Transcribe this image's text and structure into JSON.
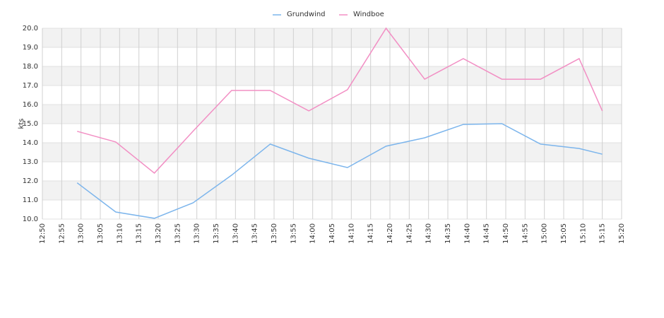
{
  "chart_data": {
    "type": "line",
    "y_label": "kts",
    "x": [
      "12:59",
      "13:09",
      "13:19",
      "13:29",
      "13:39",
      "13:49",
      "13:59",
      "14:09",
      "14:19",
      "14:29",
      "14:39",
      "14:49",
      "14:59",
      "15:09",
      "15:15"
    ],
    "series": [
      {
        "name": "Grundwind",
        "color": "#7cb5ec",
        "values": [
          11.9,
          10.37,
          10.04,
          10.85,
          12.3,
          13.93,
          13.19,
          12.7,
          13.82,
          14.26,
          14.96,
          15.0,
          13.93,
          13.7,
          13.4
        ]
      },
      {
        "name": "Windboe",
        "color": "#f28fc4",
        "values": [
          14.6,
          14.04,
          12.41,
          14.6,
          16.74,
          16.74,
          15.67,
          16.78,
          20.0,
          17.33,
          18.41,
          17.33,
          17.33,
          18.41,
          15.67
        ]
      }
    ],
    "xlim": [
      "12:50",
      "15:20"
    ],
    "xticks": [
      "12:50",
      "12:55",
      "13:00",
      "13:05",
      "13:10",
      "13:15",
      "13:20",
      "13:25",
      "13:30",
      "13:35",
      "13:40",
      "13:45",
      "13:50",
      "13:55",
      "14:00",
      "14:05",
      "14:10",
      "14:15",
      "14:20",
      "14:25",
      "14:30",
      "14:35",
      "14:40",
      "14:45",
      "14:50",
      "14:55",
      "15:00",
      "15:05",
      "15:10",
      "15:15",
      "15:20"
    ],
    "ylim": [
      10,
      20
    ],
    "yticks": [
      {
        "value": 10,
        "label": "10.0"
      },
      {
        "value": 11,
        "label": "11.0"
      },
      {
        "value": 12,
        "label": "12.0"
      },
      {
        "value": 13,
        "label": "13.0"
      },
      {
        "value": 14,
        "label": "14.0"
      },
      {
        "value": 15,
        "label": "15.0"
      },
      {
        "value": 16,
        "label": "16.0"
      },
      {
        "value": 17,
        "label": "17.0"
      },
      {
        "value": 18,
        "label": "18.0"
      },
      {
        "value": 19,
        "label": "19.0"
      },
      {
        "value": 20,
        "label": "20.0"
      }
    ],
    "grid": true,
    "legend": "top"
  }
}
